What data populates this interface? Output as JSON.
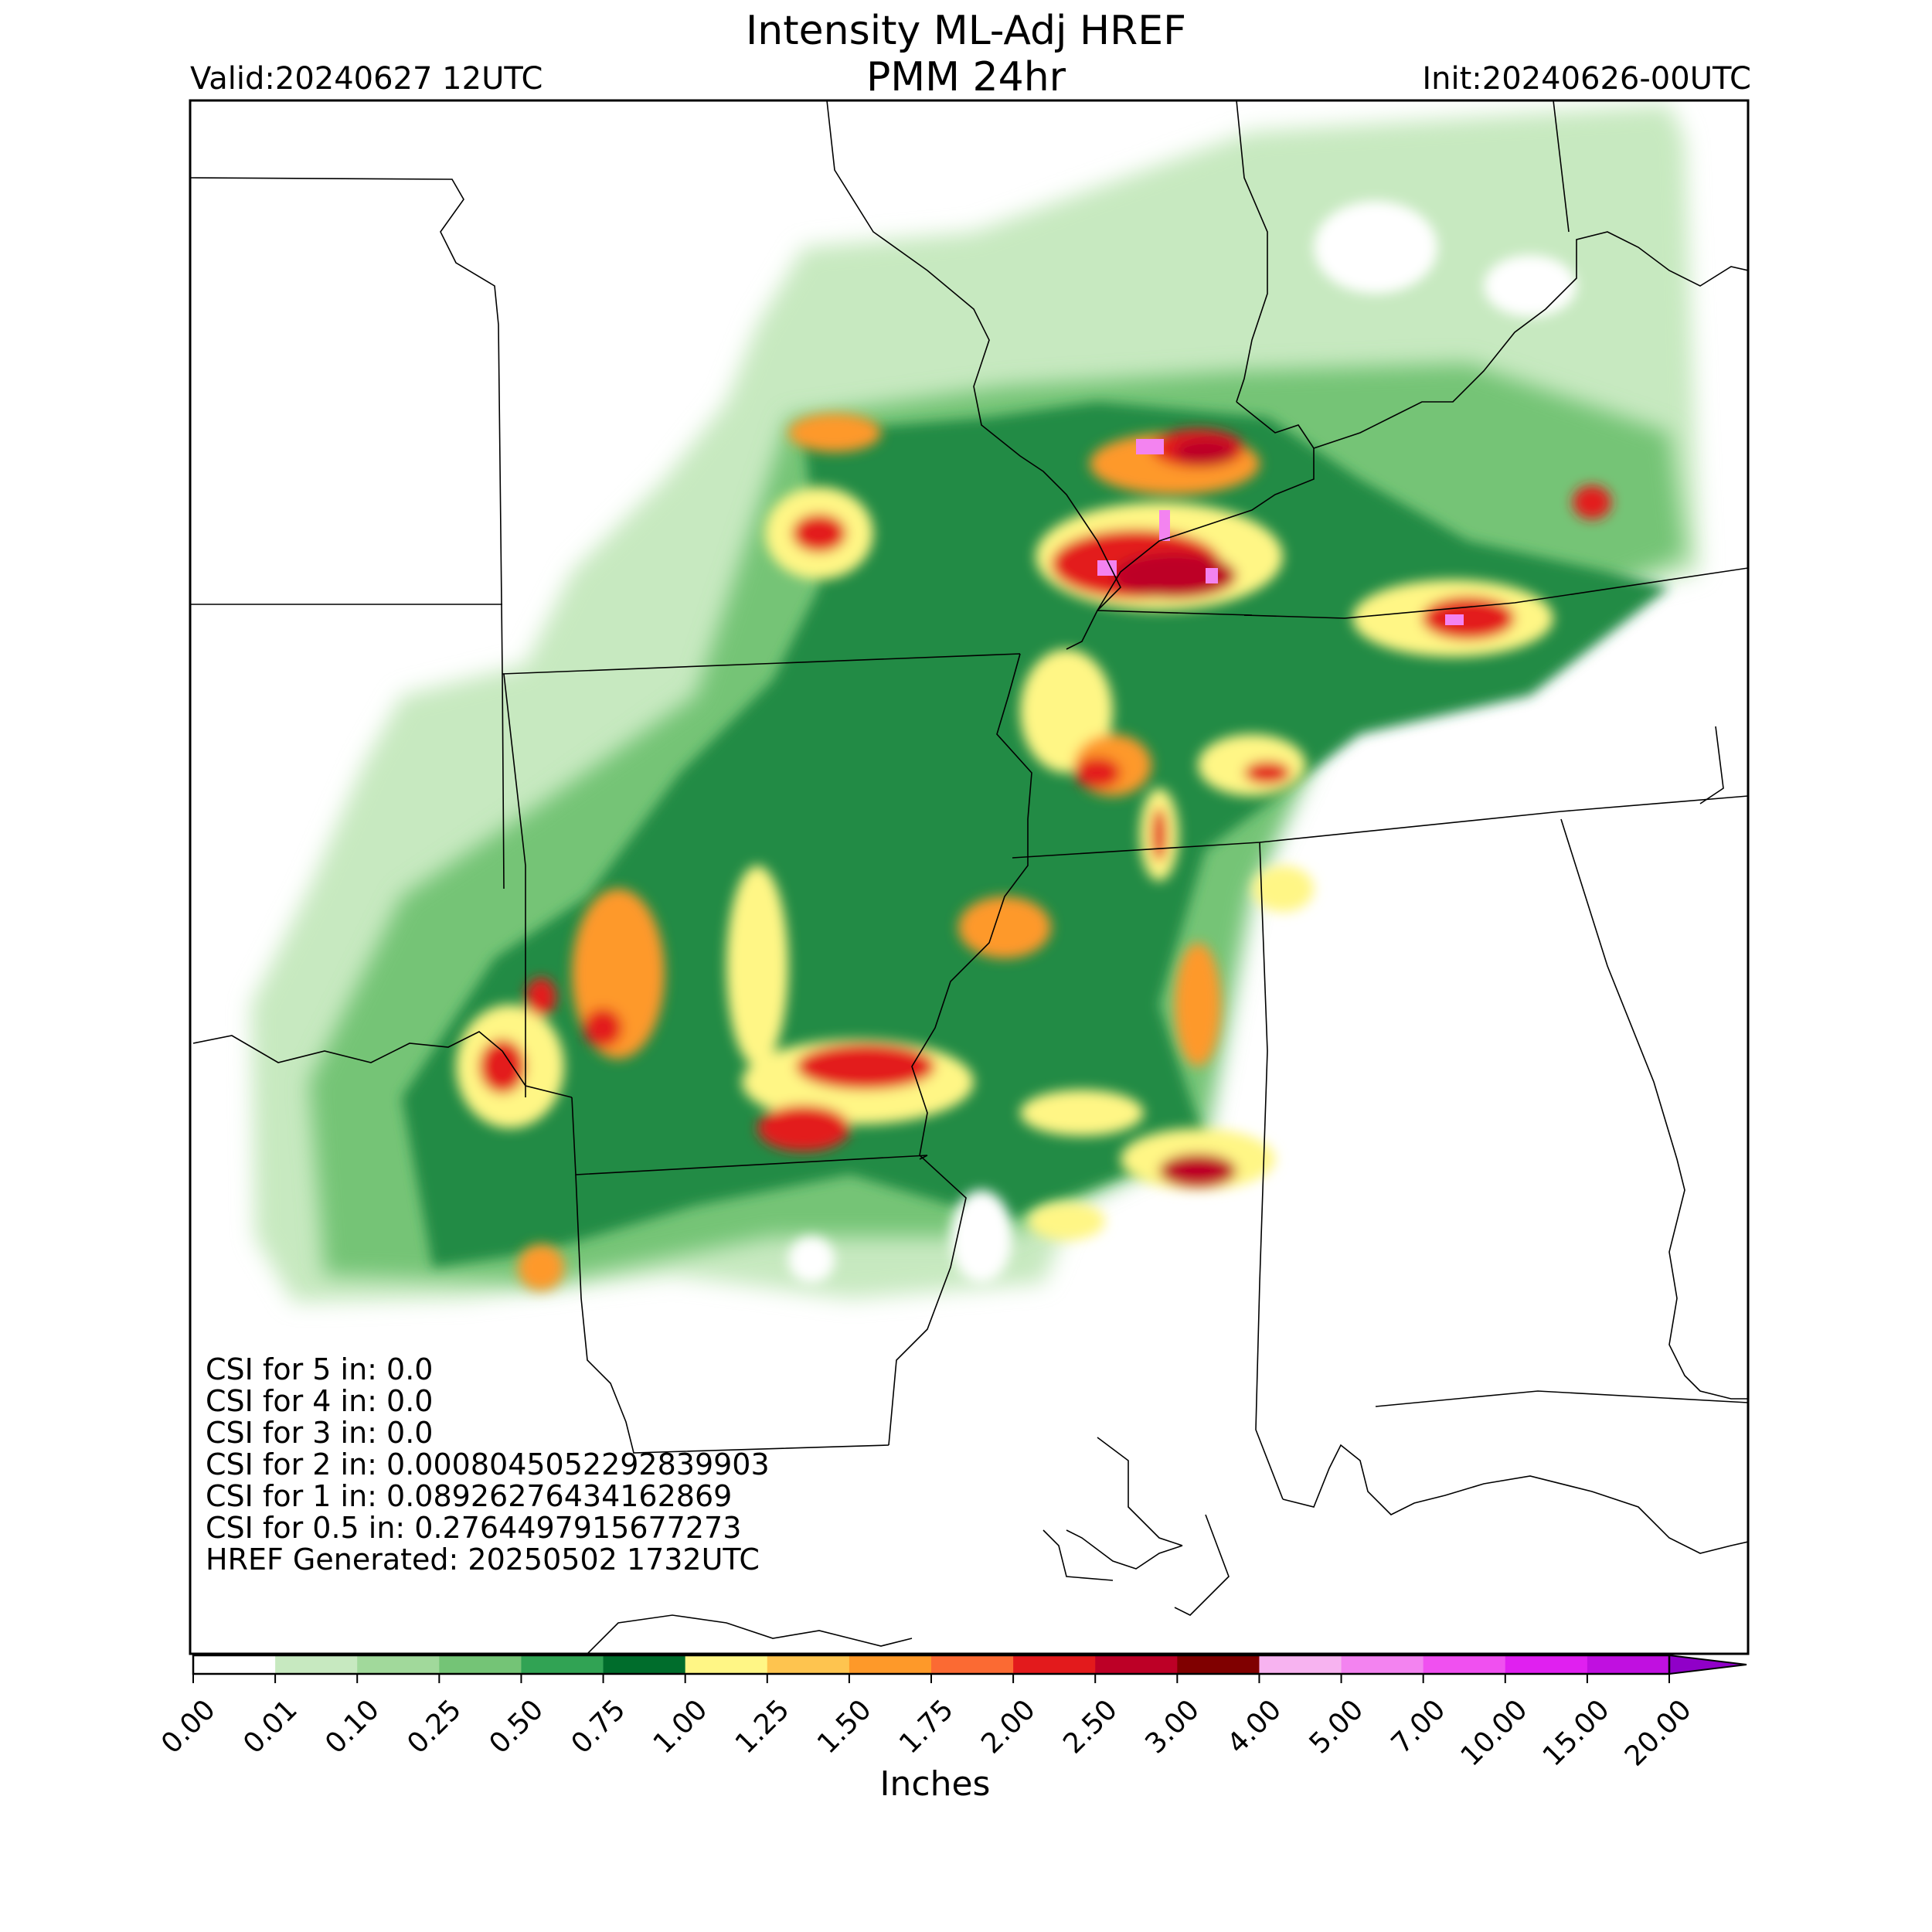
{
  "header": {
    "title_line1": "Intensity ML-Adj HREF",
    "title_line2": "PMM 24hr",
    "valid": "Valid:20240627 12UTC",
    "init": "Init:20240626-00UTC"
  },
  "stats": [
    "CSI for 5 in: 0.0",
    "CSI for 4 in: 0.0",
    "CSI for 3 in: 0.0",
    "CSI for 2 in: 0.000804505229283990 3",
    "CSI for 1 in: 0.08926276434162869",
    "CSI for 0.5 in: 0.2764497915677273",
    "HREF Generated: 20250502 1732UTC"
  ],
  "colorbar": {
    "label": "Inches",
    "ticks": [
      "0.00",
      "0.01",
      "0.10",
      "0.25",
      "0.50",
      "0.75",
      "1.00",
      "1.25",
      "1.50",
      "1.75",
      "2.00",
      "2.50",
      "3.00",
      "4.00",
      "5.00",
      "7.00",
      "10.00",
      "15.00",
      "20.00"
    ],
    "colors": [
      "#ffffff",
      "#c7e9c0",
      "#a1d99b",
      "#74c476",
      "#31a354",
      "#006d2c",
      "#fff685",
      "#fec44f",
      "#fe9929",
      "#fb6a33",
      "#e31a1c",
      "#bd0026",
      "#800000",
      "#f7b3f0",
      "#f383f0",
      "#f050f0",
      "#e020f0",
      "#c010e0",
      "#9000c8"
    ]
  },
  "map_colors": {
    "light": "#c7e9c0",
    "mid": "#74c476",
    "dark": "#238b45",
    "yellow": "#fff685",
    "orange": "#fe9929",
    "red": "#e31a1c",
    "crimson": "#bd0026",
    "pink": "#f383f0"
  }
}
